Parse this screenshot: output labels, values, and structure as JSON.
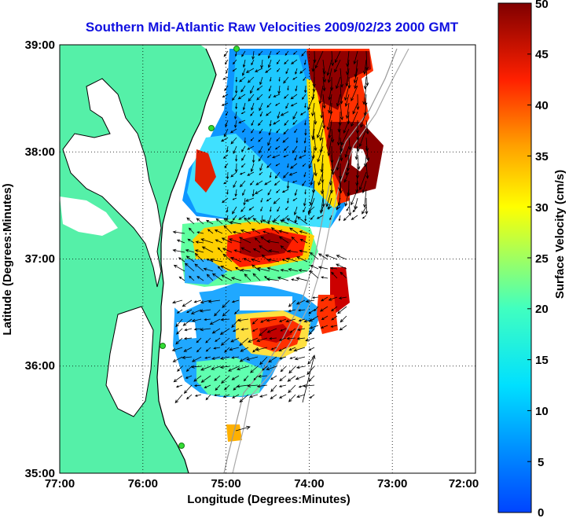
{
  "title": "Southern Mid-Atlantic Raw Velocities 2009/02/23 2000 GMT",
  "x_axis": {
    "label": "Longitude (Degrees:Minutes)",
    "ticks": [
      "77:00",
      "76:00",
      "75:00",
      "74:00",
      "73:00",
      "72:00"
    ]
  },
  "y_axis": {
    "label": "Latitude (Degrees:Minutes)",
    "ticks": [
      "39:00",
      "38:00",
      "37:00",
      "36:00",
      "35:00"
    ]
  },
  "colorbar": {
    "label": "Surface Velocity (cm/s)",
    "ticks": [
      "50",
      "45",
      "40",
      "35",
      "30",
      "25",
      "20",
      "15",
      "10",
      "5",
      "0"
    ],
    "min": 0,
    "max": 50
  },
  "colors": {
    "land": "#55f0a8",
    "coast": "#000000",
    "title": "#1010e0",
    "station": "#33dd33"
  },
  "chart_data": {
    "type": "heatmap",
    "xlim": [
      -77,
      -72
    ],
    "ylim": [
      35,
      39
    ],
    "grid": true
  }
}
